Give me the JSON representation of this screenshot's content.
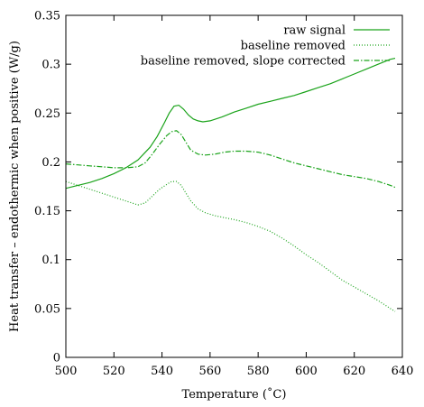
{
  "chart_data": {
    "type": "line",
    "title": "",
    "xlabel": "Temperature (˚C)",
    "ylabel": "Heat transfer – endothermic when positive (W/g)",
    "xlim": [
      500,
      640
    ],
    "ylim": [
      0,
      0.35
    ],
    "x_ticks": [
      "500",
      "520",
      "540",
      "560",
      "580",
      "600",
      "620",
      "640"
    ],
    "y_ticks": [
      "0",
      "0.05",
      "0.1",
      "0.15",
      "0.2",
      "0.25",
      "0.3",
      "0.35"
    ],
    "x_tick_values": [
      500,
      520,
      540,
      560,
      580,
      600,
      620,
      640
    ],
    "y_tick_values": [
      0,
      0.05,
      0.1,
      0.15,
      0.2,
      0.25,
      0.3,
      0.35
    ],
    "grid": false,
    "legend_position": "top-right",
    "line_color": "#1aa31a",
    "series": [
      {
        "name": "raw signal",
        "dash": "solid",
        "x": [
          500,
          505,
          510,
          515,
          520,
          525,
          530,
          535,
          538,
          541,
          543,
          545,
          547,
          549,
          551,
          553,
          555,
          557,
          560,
          565,
          570,
          575,
          580,
          585,
          590,
          595,
          600,
          605,
          610,
          615,
          620,
          625,
          630,
          635,
          637
        ],
        "y": [
          0.173,
          0.176,
          0.179,
          0.183,
          0.188,
          0.194,
          0.202,
          0.215,
          0.226,
          0.24,
          0.25,
          0.257,
          0.258,
          0.254,
          0.248,
          0.244,
          0.242,
          0.241,
          0.242,
          0.246,
          0.251,
          0.255,
          0.259,
          0.262,
          0.265,
          0.268,
          0.272,
          0.276,
          0.28,
          0.285,
          0.29,
          0.295,
          0.3,
          0.305,
          0.306
        ]
      },
      {
        "name": "baseline removed",
        "dash": "dotted",
        "x": [
          500,
          505,
          510,
          515,
          520,
          525,
          530,
          533,
          536,
          539,
          542,
          544,
          546,
          548,
          550,
          552,
          555,
          558,
          562,
          566,
          570,
          575,
          580,
          585,
          590,
          595,
          600,
          605,
          610,
          615,
          620,
          625,
          630,
          635,
          637
        ],
        "y": [
          0.18,
          0.176,
          0.172,
          0.168,
          0.164,
          0.16,
          0.156,
          0.158,
          0.165,
          0.172,
          0.177,
          0.18,
          0.18,
          0.176,
          0.168,
          0.16,
          0.152,
          0.148,
          0.145,
          0.143,
          0.141,
          0.138,
          0.134,
          0.129,
          0.122,
          0.114,
          0.105,
          0.097,
          0.088,
          0.079,
          0.072,
          0.065,
          0.058,
          0.05,
          0.047
        ]
      },
      {
        "name": "baseline removed, slope corrected",
        "dash": "dashdot",
        "x": [
          500,
          505,
          510,
          515,
          520,
          525,
          530,
          533,
          536,
          539,
          542,
          544,
          546,
          548,
          550,
          552,
          555,
          558,
          562,
          566,
          570,
          575,
          580,
          585,
          590,
          595,
          600,
          605,
          610,
          615,
          620,
          625,
          630,
          635,
          637
        ],
        "y": [
          0.198,
          0.197,
          0.196,
          0.195,
          0.194,
          0.194,
          0.195,
          0.199,
          0.208,
          0.218,
          0.227,
          0.231,
          0.232,
          0.228,
          0.22,
          0.212,
          0.208,
          0.207,
          0.208,
          0.21,
          0.211,
          0.211,
          0.21,
          0.207,
          0.203,
          0.199,
          0.196,
          0.193,
          0.19,
          0.187,
          0.185,
          0.183,
          0.18,
          0.176,
          0.174
        ]
      }
    ]
  }
}
